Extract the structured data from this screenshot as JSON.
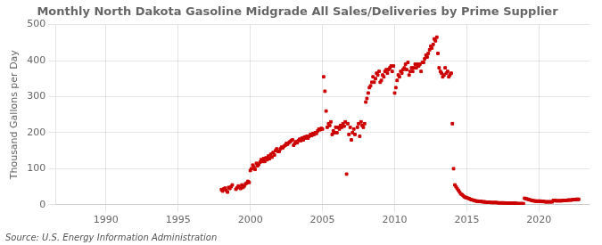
{
  "chart_data": {
    "type": "scatter",
    "title": "Monthly North Dakota Gasoline Midgrade All Sales/Deliveries by Prime Supplier",
    "ylabel": "Thousand Gallons per Day",
    "annotation": "Source: U.S. Energy Information Administration",
    "color": "#cc0000",
    "marker": "square",
    "grid": true,
    "xlim": [
      1986.5,
      2023.5
    ],
    "xticks": [
      1990,
      1995,
      2000,
      2005,
      2010,
      2015,
      2020
    ],
    "ylim": [
      0,
      500
    ],
    "yticks": [
      0,
      100,
      200,
      300,
      400,
      500
    ],
    "x": [
      1998.0,
      1998.08,
      1998.17,
      1998.25,
      1998.33,
      1998.42,
      1998.5,
      1998.58,
      1998.67,
      1998.75,
      1999.0,
      1999.08,
      1999.17,
      1999.25,
      1999.33,
      1999.42,
      1999.5,
      1999.58,
      1999.67,
      1999.75,
      1999.83,
      1999.92,
      2000.0,
      2000.08,
      2000.17,
      2000.25,
      2000.33,
      2000.42,
      2000.5,
      2000.58,
      2000.67,
      2000.75,
      2000.83,
      2000.92,
      2001.0,
      2001.08,
      2001.17,
      2001.25,
      2001.33,
      2001.42,
      2001.5,
      2001.58,
      2001.67,
      2001.75,
      2001.83,
      2001.92,
      2002.0,
      2002.08,
      2002.17,
      2002.25,
      2002.33,
      2002.42,
      2002.5,
      2002.58,
      2002.67,
      2002.75,
      2002.83,
      2002.92,
      2003.0,
      2003.08,
      2003.17,
      2003.25,
      2003.33,
      2003.42,
      2003.5,
      2003.58,
      2003.67,
      2003.75,
      2003.83,
      2003.92,
      2004.0,
      2004.08,
      2004.17,
      2004.25,
      2004.33,
      2004.42,
      2004.5,
      2004.58,
      2004.67,
      2004.75,
      2004.83,
      2004.92,
      2005.0,
      2005.08,
      2005.17,
      2005.25,
      2005.33,
      2005.42,
      2005.5,
      2005.58,
      2005.67,
      2005.75,
      2005.83,
      2005.92,
      2006.0,
      2006.08,
      2006.17,
      2006.25,
      2006.33,
      2006.42,
      2006.5,
      2006.58,
      2006.67,
      2006.75,
      2006.83,
      2006.92,
      2007.0,
      2007.08,
      2007.17,
      2007.25,
      2007.42,
      2007.5,
      2007.58,
      2007.67,
      2007.75,
      2007.83,
      2007.92,
      2008.0,
      2008.08,
      2008.17,
      2008.25,
      2008.33,
      2008.42,
      2008.5,
      2008.58,
      2008.67,
      2008.75,
      2008.83,
      2008.92,
      2009.0,
      2009.08,
      2009.17,
      2009.25,
      2009.33,
      2009.42,
      2009.5,
      2009.58,
      2009.67,
      2009.75,
      2009.83,
      2009.92,
      2010.0,
      2010.08,
      2010.17,
      2010.25,
      2010.33,
      2010.42,
      2010.5,
      2010.58,
      2010.67,
      2010.75,
      2010.83,
      2010.92,
      2011.0,
      2011.08,
      2011.17,
      2011.25,
      2011.33,
      2011.42,
      2011.5,
      2011.58,
      2011.67,
      2011.75,
      2011.83,
      2011.92,
      2012.0,
      2012.08,
      2012.17,
      2012.25,
      2012.33,
      2012.42,
      2012.5,
      2012.58,
      2012.67,
      2012.75,
      2012.83,
      2012.92,
      2013.0,
      2013.08,
      2013.17,
      2013.25,
      2013.33,
      2013.42,
      2013.5,
      2013.58,
      2013.67,
      2013.75,
      2013.83,
      2013.92,
      2014.0,
      2014.08,
      2014.17,
      2014.25,
      2014.33,
      2014.42,
      2014.5,
      2014.58,
      2014.67,
      2014.75,
      2014.83,
      2014.92,
      2015.0,
      2015.08,
      2015.17,
      2015.25,
      2015.33,
      2015.42,
      2015.5,
      2015.58,
      2015.67,
      2015.75,
      2015.83,
      2015.92,
      2016.0,
      2016.08,
      2016.17,
      2016.25,
      2016.33,
      2016.42,
      2016.5,
      2016.58,
      2016.67,
      2016.75,
      2016.83,
      2016.92,
      2017.0,
      2017.08,
      2017.17,
      2017.25,
      2017.33,
      2017.42,
      2017.5,
      2017.58,
      2017.67,
      2017.75,
      2017.83,
      2017.92,
      2018.0,
      2018.08,
      2018.17,
      2018.25,
      2018.33,
      2018.42,
      2018.5,
      2018.58,
      2018.67,
      2018.75,
      2018.83,
      2018.92,
      2019.0,
      2019.08,
      2019.17,
      2019.25,
      2019.33,
      2019.42,
      2019.5,
      2019.58,
      2019.67,
      2019.75,
      2019.83,
      2019.92,
      2020.0,
      2020.08,
      2020.17,
      2020.25,
      2020.33,
      2020.42,
      2020.5,
      2020.58,
      2020.67,
      2020.75,
      2020.83,
      2020.92,
      2021.0,
      2021.08,
      2021.17,
      2021.25,
      2021.33,
      2021.42,
      2021.5,
      2021.58,
      2021.67,
      2021.75,
      2021.83,
      2021.92,
      2022.0,
      2022.08,
      2022.17,
      2022.25,
      2022.33,
      2022.42,
      2022.5,
      2022.58,
      2022.67,
      2022.75
    ],
    "values": [
      42,
      38,
      44,
      46,
      40,
      35,
      48,
      45,
      50,
      55,
      43,
      47,
      52,
      50,
      45,
      55,
      48,
      52,
      58,
      60,
      65,
      62,
      95,
      100,
      110,
      105,
      98,
      115,
      108,
      112,
      118,
      125,
      120,
      128,
      120,
      130,
      125,
      135,
      128,
      140,
      132,
      145,
      138,
      150,
      155,
      148,
      148,
      155,
      160,
      158,
      162,
      165,
      170,
      168,
      172,
      175,
      178,
      180,
      165,
      170,
      175,
      172,
      178,
      182,
      178,
      185,
      180,
      188,
      185,
      190,
      185,
      190,
      195,
      192,
      198,
      195,
      200,
      198,
      205,
      210,
      208,
      212,
      210,
      355,
      315,
      260,
      215,
      225,
      220,
      230,
      195,
      205,
      200,
      215,
      200,
      215,
      210,
      220,
      215,
      225,
      218,
      230,
      85,
      225,
      195,
      215,
      180,
      200,
      210,
      195,
      215,
      225,
      190,
      230,
      220,
      215,
      225,
      285,
      295,
      310,
      325,
      330,
      340,
      355,
      340,
      350,
      365,
      360,
      370,
      340,
      345,
      360,
      355,
      370,
      375,
      365,
      375,
      380,
      385,
      370,
      385,
      310,
      325,
      345,
      360,
      355,
      370,
      365,
      375,
      380,
      390,
      375,
      395,
      360,
      370,
      380,
      370,
      380,
      390,
      380,
      390,
      385,
      390,
      370,
      395,
      395,
      405,
      415,
      410,
      420,
      430,
      440,
      435,
      445,
      460,
      455,
      465,
      420,
      380,
      370,
      365,
      355,
      360,
      380,
      365,
      370,
      355,
      360,
      365,
      225,
      100,
      55,
      50,
      45,
      40,
      35,
      30,
      28,
      25,
      22,
      20,
      20,
      18,
      17,
      15,
      14,
      13,
      12,
      11,
      10,
      10,
      9,
      9,
      9,
      8,
      8,
      8,
      7,
      7,
      7,
      7,
      6,
      6,
      6,
      6,
      6,
      6,
      5,
      5,
      5,
      5,
      5,
      5,
      4,
      4,
      4,
      4,
      4,
      4,
      4,
      4,
      4,
      4,
      3,
      3,
      3,
      3,
      3,
      3,
      18,
      17,
      16,
      15,
      14,
      13,
      12,
      11,
      11,
      10,
      10,
      10,
      10,
      10,
      9,
      9,
      9,
      8,
      8,
      8,
      8,
      8,
      8,
      8,
      12,
      12,
      11,
      11,
      11,
      11,
      11,
      11,
      12,
      12,
      12,
      12,
      13,
      13,
      13,
      13,
      14,
      14,
      14,
      15,
      15,
      15
    ]
  }
}
